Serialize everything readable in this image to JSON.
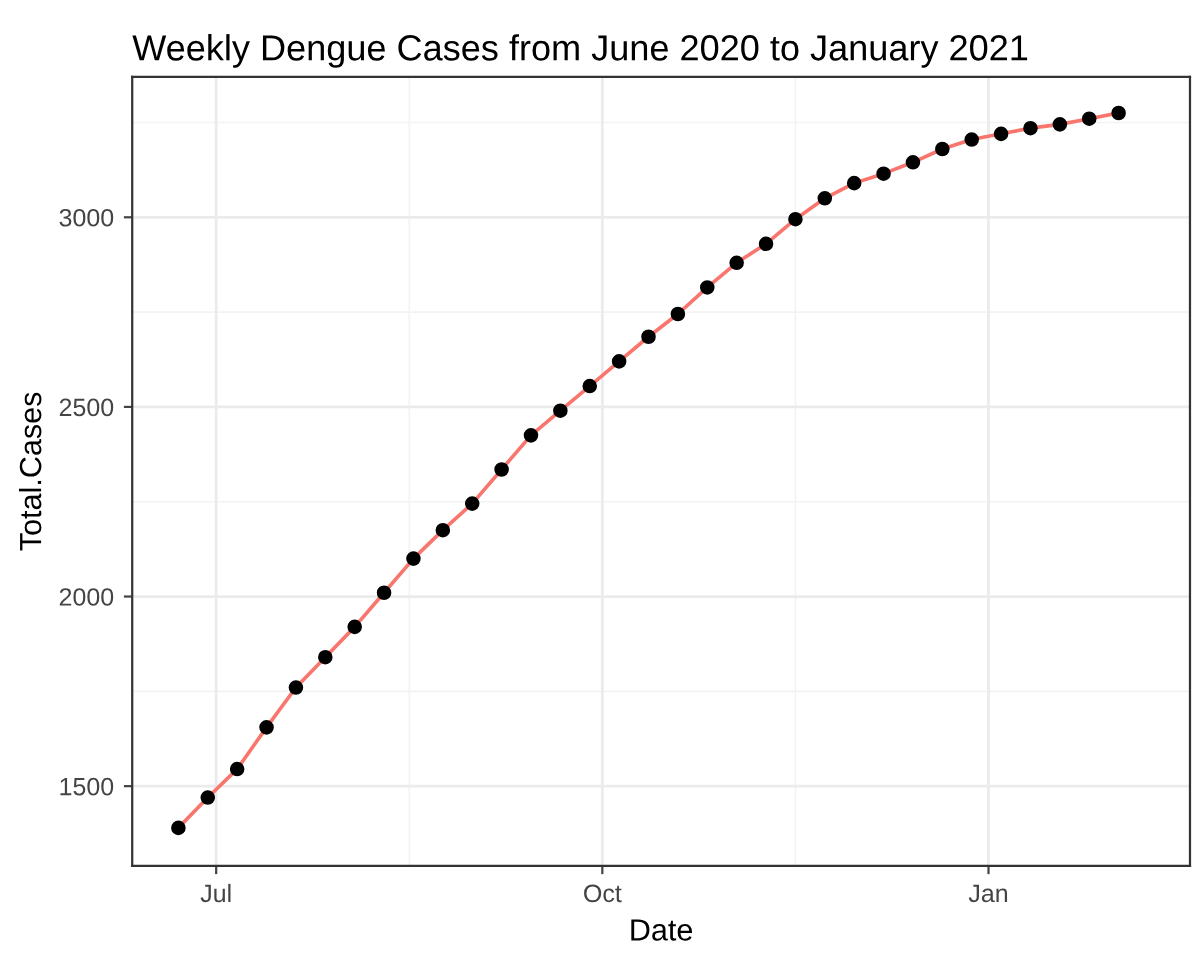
{
  "chart_data": {
    "type": "line",
    "title": "Weekly Dengue Cases from June 2020 to January 2021",
    "xlabel": "Date",
    "ylabel": "Total.Cases",
    "x": [
      "2020-06-22",
      "2020-06-29",
      "2020-07-06",
      "2020-07-13",
      "2020-07-20",
      "2020-07-27",
      "2020-08-03",
      "2020-08-10",
      "2020-08-17",
      "2020-08-24",
      "2020-08-31",
      "2020-09-07",
      "2020-09-14",
      "2020-09-21",
      "2020-09-28",
      "2020-10-05",
      "2020-10-12",
      "2020-10-19",
      "2020-10-26",
      "2020-11-02",
      "2020-11-09",
      "2020-11-16",
      "2020-11-23",
      "2020-11-30",
      "2020-12-07",
      "2020-12-14",
      "2020-12-21",
      "2020-12-28",
      "2021-01-04",
      "2021-01-11",
      "2021-01-18",
      "2021-01-25",
      "2021-02-01"
    ],
    "series": [
      {
        "color": "#f8766d",
        "values": [
          1390,
          1470,
          1545,
          1655,
          1760,
          1840,
          1920,
          2010,
          2100,
          2175,
          2245,
          2335,
          2425,
          2490,
          2555,
          2620,
          2685,
          2745,
          2815,
          2880,
          2930,
          2995,
          3050,
          3090,
          3115,
          3145,
          3180,
          3205,
          3220,
          3235,
          3245,
          3260,
          3275
        ]
      }
    ],
    "xlim": [
      "2020-06-11",
      "2021-02-18"
    ],
    "xticks": [
      {
        "value": "2020-07-01",
        "label": "Jul"
      },
      {
        "value": "2020-10-01",
        "label": "Oct"
      },
      {
        "value": "2021-01-01",
        "label": "Jan"
      }
    ],
    "ylim": [
      1290,
      3370
    ],
    "yticks": [
      1500,
      2000,
      2500,
      3000
    ],
    "grid": true,
    "marker": "circle",
    "line_style": "solid"
  }
}
